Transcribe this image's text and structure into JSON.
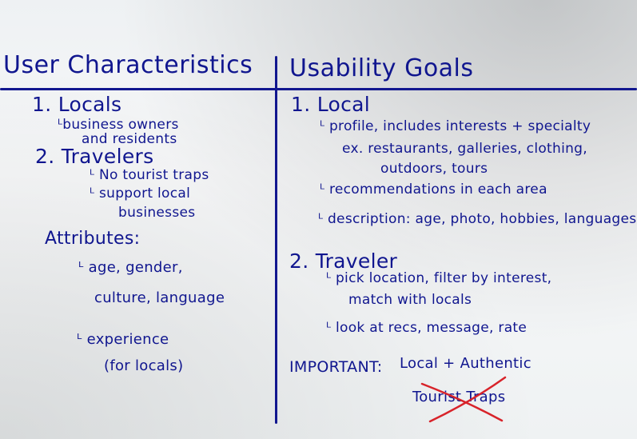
{
  "left": {
    "heading": "User Characteristics",
    "item1_title": "1. Locals",
    "item1_sub_line1": "ᴸbusiness owners",
    "item1_sub_line2": "and residents",
    "item2_title": "2. Travelers",
    "item2_sub1": "ᴸ No tourist traps",
    "item2_sub2_line1": "ᴸ support local",
    "item2_sub2_line2": "businesses",
    "attributes_title": "Attributes:",
    "attr1_line1": "ᴸ age, gender,",
    "attr1_line2": "culture, language",
    "attr2_line1": "ᴸ experience",
    "attr2_line2": "(for locals)"
  },
  "right": {
    "heading": "Usability Goals",
    "item1_title": "1. Local",
    "item1_point1_line1": "ᴸ profile, includes interests + specialty",
    "item1_point1_line2": "ex. restaurants, galleries, clothing,",
    "item1_point1_line3": "outdoors, tours",
    "item1_point2": "ᴸ recommendations in each area",
    "item1_point3": "ᴸ description: age, photo, hobbies, languages",
    "item2_title": "2. Traveler",
    "item2_point1_line1": "ᴸ pick location, filter by interest,",
    "item2_point1_line2": "match with locals",
    "item2_point2": "ᴸ look at recs, message, rate",
    "important_label": "IMPORTANT:",
    "important_value": "Local + Authentic",
    "crossed_text": "Tourist Traps"
  },
  "colors": {
    "ink": "#10168f",
    "cross_out": "#d8232a",
    "board": "#f3f5f6"
  }
}
